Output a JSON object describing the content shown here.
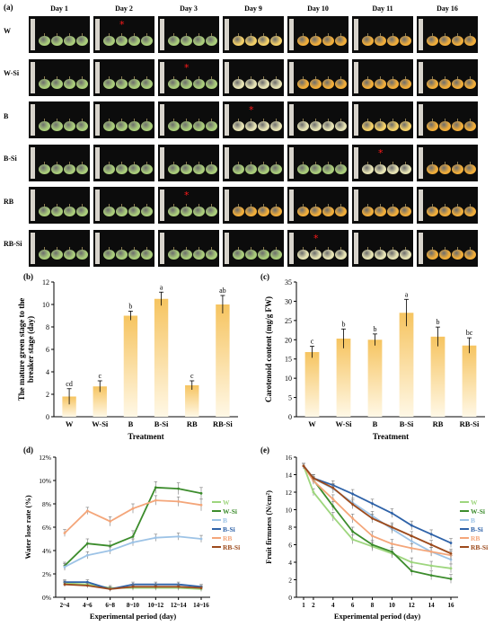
{
  "panel_labels": {
    "a": "(a)",
    "b": "(b)",
    "c": "(c)",
    "d": "(d)",
    "e": "(e)"
  },
  "photo_grid": {
    "days": [
      "Day 1",
      "Day 2",
      "Day 3",
      "Day 9",
      "Day 10",
      "Day 11",
      "Day 16"
    ],
    "treatments": [
      "W",
      "W-Si",
      "B",
      "B-Si",
      "RB",
      "RB-Si"
    ],
    "star_marker": "*",
    "star_positions": [
      {
        "treatment": "W",
        "day": "Day 2"
      },
      {
        "treatment": "W-Si",
        "day": "Day 3"
      },
      {
        "treatment": "B",
        "day": "Day 9"
      },
      {
        "treatment": "B-Si",
        "day": "Day 11"
      },
      {
        "treatment": "RB",
        "day": "Day 3"
      },
      {
        "treatment": "RB-Si",
        "day": "Day 10"
      }
    ],
    "fruit_colors": {
      "green": "#a9cc7a",
      "pale": "#e6e3b4",
      "yellow": "#f2cf68",
      "orange": "#f0ad3a"
    },
    "stage_by_cell": [
      [
        "green",
        "green",
        "green",
        "yellow",
        "orange",
        "orange",
        "orange"
      ],
      [
        "green",
        "green",
        "green",
        "pale",
        "orange",
        "orange",
        "orange"
      ],
      [
        "green",
        "green",
        "green",
        "pale",
        "pale",
        "yellow",
        "orange"
      ],
      [
        "green",
        "green",
        "green",
        "green",
        "green",
        "pale",
        "orange"
      ],
      [
        "green",
        "green",
        "green",
        "orange",
        "orange",
        "orange",
        "orange"
      ],
      [
        "green",
        "green",
        "green",
        "green",
        "pale",
        "pale",
        "orange"
      ]
    ]
  },
  "chart_data": [
    {
      "panel": "(b)",
      "type": "bar",
      "categories": [
        "W",
        "W-Si",
        "B",
        "B-Si",
        "RB",
        "RB-Si"
      ],
      "values": [
        1.8,
        2.7,
        9.0,
        10.5,
        2.8,
        10.0
      ],
      "errors": [
        0.7,
        0.5,
        0.4,
        0.6,
        0.4,
        0.8
      ],
      "letters": [
        "cd",
        "c",
        "b",
        "a",
        "c",
        "ab"
      ],
      "xlabel": "Treatment",
      "ylabel": "The mature green stage to the breaker stage (day)",
      "ylim": [
        0,
        12
      ],
      "yticks": [
        0,
        2,
        4,
        6,
        8,
        10,
        12
      ],
      "bar_color": "#f6c460"
    },
    {
      "panel": "(c)",
      "type": "bar",
      "categories": [
        "W",
        "W-Si",
        "B",
        "B-Si",
        "RB",
        "RB-Si"
      ],
      "values": [
        16.8,
        20.3,
        20.0,
        27.0,
        20.8,
        18.5
      ],
      "errors": [
        1.5,
        2.5,
        1.5,
        3.5,
        2.5,
        2.0
      ],
      "letters": [
        "c",
        "b",
        "b",
        "a",
        "b",
        "bc"
      ],
      "xlabel": "Treatment",
      "ylabel": "Carotenoid content (mg/g FW)",
      "ylim": [
        0,
        35
      ],
      "yticks": [
        0,
        5,
        10,
        15,
        20,
        25,
        30,
        35
      ],
      "bar_color": "#f6c460"
    },
    {
      "panel": "(d)",
      "type": "line",
      "categories": [
        "2~4",
        "4~6",
        "6~8",
        "8~10",
        "10~12",
        "12~14",
        "14~16"
      ],
      "xlabel": "Experimental period (day)",
      "ylabel": "Water lose rate (%)",
      "ylim": [
        0,
        12
      ],
      "yticks": [
        "0%",
        "2%",
        "4%",
        "6%",
        "8%",
        "10%",
        "12%"
      ],
      "legend_position": "right",
      "series": [
        {
          "name": "W",
          "color": "#9ed67e",
          "values": [
            1.2,
            1.1,
            0.8,
            0.8,
            0.8,
            0.8,
            0.7
          ],
          "errors": [
            0.2,
            0.2,
            0.2,
            0.2,
            0.2,
            0.2,
            0.2
          ]
        },
        {
          "name": "W-Si",
          "color": "#3c8c2c",
          "values": [
            2.7,
            4.6,
            4.4,
            5.2,
            9.4,
            9.3,
            8.9
          ],
          "errors": [
            0.3,
            0.4,
            0.4,
            0.5,
            0.5,
            0.5,
            0.5
          ]
        },
        {
          "name": "B",
          "color": "#9dc3e6",
          "values": [
            2.6,
            3.6,
            4.0,
            4.7,
            5.1,
            5.2,
            5.0
          ],
          "errors": [
            0.3,
            0.3,
            0.3,
            0.3,
            0.3,
            0.3,
            0.3
          ]
        },
        {
          "name": "B-Si",
          "color": "#2e62a8",
          "values": [
            1.3,
            1.3,
            0.7,
            1.1,
            1.1,
            1.1,
            0.9
          ],
          "errors": [
            0.2,
            0.2,
            0.2,
            0.2,
            0.2,
            0.2,
            0.2
          ]
        },
        {
          "name": "RB",
          "color": "#f4a67a",
          "values": [
            5.5,
            7.4,
            6.5,
            7.6,
            8.3,
            8.2,
            7.9
          ],
          "errors": [
            0.3,
            0.3,
            0.4,
            0.4,
            0.4,
            0.4,
            0.5
          ]
        },
        {
          "name": "RB-Si",
          "color": "#9c4a1c",
          "values": [
            1.1,
            1.0,
            0.7,
            0.9,
            0.9,
            0.9,
            0.8
          ],
          "errors": [
            0.2,
            0.2,
            0.2,
            0.2,
            0.2,
            0.2,
            0.2
          ]
        }
      ]
    },
    {
      "panel": "(e)",
      "type": "line",
      "x": [
        1,
        2,
        4,
        6,
        8,
        10,
        12,
        14,
        16
      ],
      "xlabel": "Experimental period (day)",
      "ylabel": "Fruit firmness (N/cm²)",
      "ylim": [
        0,
        16
      ],
      "yticks": [
        0,
        2,
        4,
        6,
        8,
        10,
        12,
        14,
        16
      ],
      "xticks": [
        1,
        2,
        4,
        6,
        8,
        10,
        12,
        14,
        16
      ],
      "legend_position": "right",
      "series": [
        {
          "name": "W",
          "color": "#9ed67e",
          "values": [
            15.0,
            12.0,
            9.2,
            6.6,
            5.8,
            5.0,
            4.0,
            3.6,
            3.3
          ],
          "errors": [
            0.3,
            0.4,
            0.5,
            0.5,
            0.5,
            0.5,
            0.5,
            0.5,
            0.5
          ]
        },
        {
          "name": "W-Si",
          "color": "#3c8c2c",
          "values": [
            15.0,
            13.4,
            10.4,
            7.5,
            6.0,
            5.2,
            3.0,
            2.5,
            2.1
          ],
          "errors": [
            0.3,
            0.4,
            0.5,
            0.5,
            0.5,
            0.5,
            0.5,
            0.5,
            0.5
          ]
        },
        {
          "name": "B",
          "color": "#9dc3e6",
          "values": [
            15.0,
            13.6,
            12.4,
            10.8,
            9.3,
            7.8,
            6.4,
            5.2,
            4.3
          ],
          "errors": [
            0.3,
            0.4,
            0.5,
            0.5,
            0.5,
            0.5,
            0.5,
            0.5,
            0.5
          ]
        },
        {
          "name": "B-Si",
          "color": "#2e62a8",
          "values": [
            15.0,
            13.6,
            12.8,
            11.8,
            10.7,
            9.6,
            8.2,
            7.2,
            6.2
          ],
          "errors": [
            0.3,
            0.4,
            0.5,
            0.5,
            0.5,
            0.5,
            0.5,
            0.5,
            0.5
          ]
        },
        {
          "name": "RB",
          "color": "#f4a67a",
          "values": [
            15.0,
            13.3,
            11.2,
            9.0,
            7.0,
            6.1,
            5.6,
            5.2,
            4.8
          ],
          "errors": [
            0.3,
            0.4,
            0.5,
            0.5,
            0.5,
            0.5,
            0.5,
            0.5,
            0.5
          ]
        },
        {
          "name": "RB-Si",
          "color": "#9c4a1c",
          "values": [
            15.0,
            13.6,
            12.5,
            10.6,
            9.0,
            8.0,
            7.0,
            6.0,
            5.0
          ],
          "errors": [
            0.3,
            0.4,
            0.5,
            0.5,
            0.5,
            0.5,
            0.5,
            0.5,
            0.5
          ]
        }
      ]
    }
  ]
}
